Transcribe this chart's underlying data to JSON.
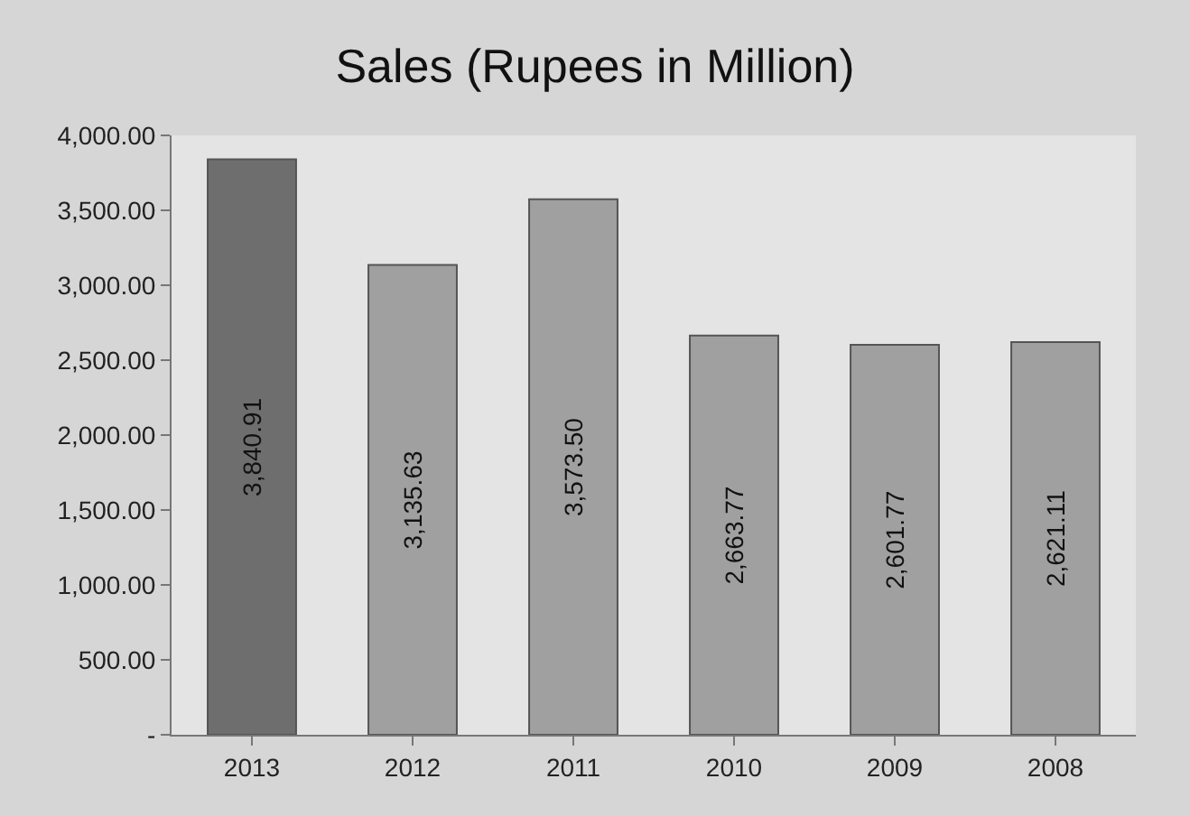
{
  "chart_data": {
    "type": "bar",
    "title": "Sales (Rupees in Million)",
    "categories": [
      "2013",
      "2012",
      "2011",
      "2010",
      "2009",
      "2008"
    ],
    "values": [
      3840.91,
      3135.63,
      3573.5,
      2663.77,
      2601.77,
      2621.11
    ],
    "colors": [
      "#6e6e6e",
      "#a0a0a0",
      "#a0a0a0",
      "#a0a0a0",
      "#a0a0a0",
      "#a0a0a0"
    ],
    "value_labels": [
      "3,840.91",
      "3,135.63",
      "3,573.50",
      "2,663.77",
      "2,601.77",
      "2,621.11"
    ],
    "ylim": [
      0,
      4000
    ],
    "yticks": [
      {
        "value": 0,
        "label": "-"
      },
      {
        "value": 500,
        "label": "500.00"
      },
      {
        "value": 1000,
        "label": "1,000.00"
      },
      {
        "value": 1500,
        "label": "1,500.00"
      },
      {
        "value": 2000,
        "label": "2,000.00"
      },
      {
        "value": 2500,
        "label": "2,500.00"
      },
      {
        "value": 3000,
        "label": "3,000.00"
      },
      {
        "value": 3500,
        "label": "3,500.00"
      },
      {
        "value": 4000,
        "label": "4,000.00"
      }
    ],
    "grid": false
  }
}
